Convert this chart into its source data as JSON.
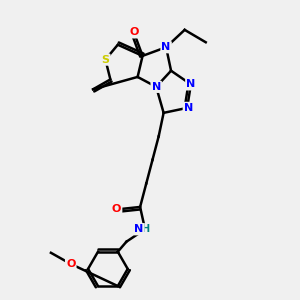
{
  "background_color": "#f0f0f0",
  "atom_colors": {
    "S": "#cccc00",
    "N": "#0000ff",
    "O": "#ff0000",
    "C": "#000000",
    "H": "#008080"
  },
  "bond_color": "#000000",
  "bond_width": 1.8,
  "figsize": [
    3.0,
    3.0
  ],
  "dpi": 100
}
